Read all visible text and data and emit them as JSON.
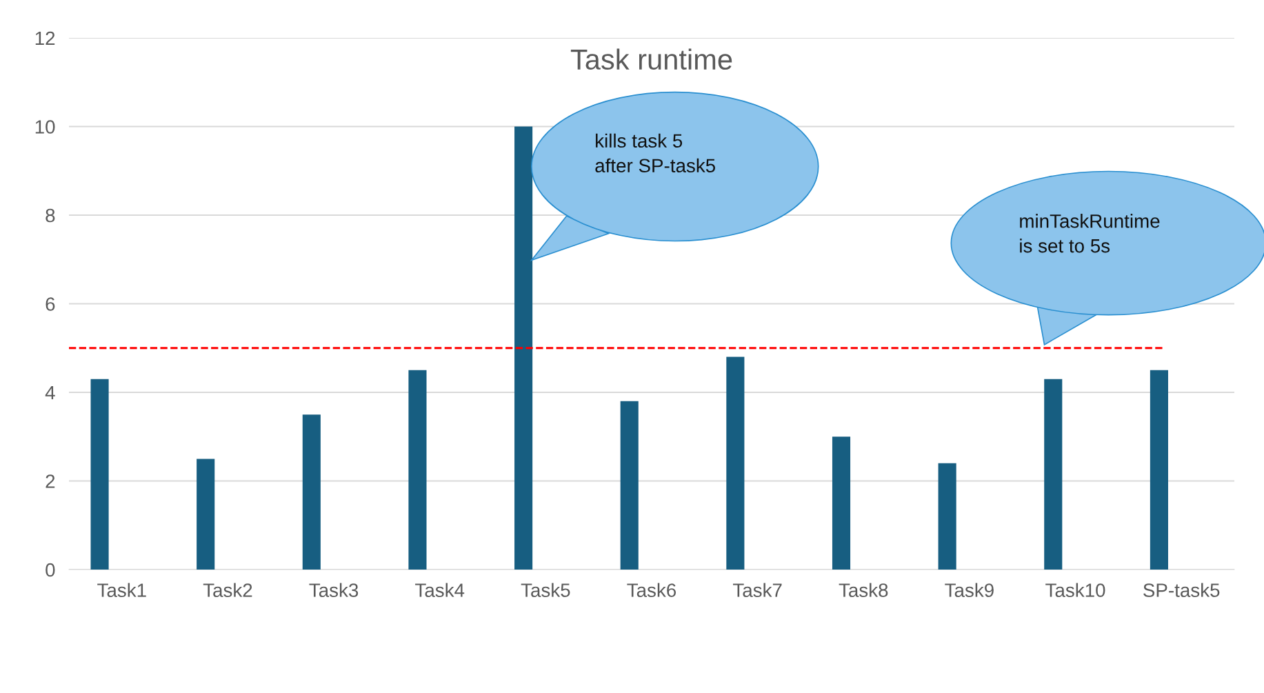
{
  "chart_data": {
    "type": "bar",
    "title": "Task runtime",
    "categories": [
      "Task1",
      "Task2",
      "Task3",
      "Task4",
      "Task5",
      "Task6",
      "Task7",
      "Task8",
      "Task9",
      "Task10",
      "SP-task5"
    ],
    "values": [
      4.3,
      2.5,
      3.5,
      4.5,
      10,
      3.8,
      4.8,
      3.0,
      2.4,
      4.3,
      4.5
    ],
    "color": "#175e81",
    "ylim": [
      0,
      12
    ],
    "yticks": [
      0,
      2,
      4,
      6,
      8,
      10,
      12
    ],
    "grid": "y",
    "ref_lines": [
      {
        "axis": "y",
        "value": 5,
        "color": "#ff0000",
        "line_style": "dashed"
      }
    ],
    "annotations": [
      "kills task 5\nafter SP-task5",
      "minTaskRuntime\nis set to 5s"
    ]
  }
}
